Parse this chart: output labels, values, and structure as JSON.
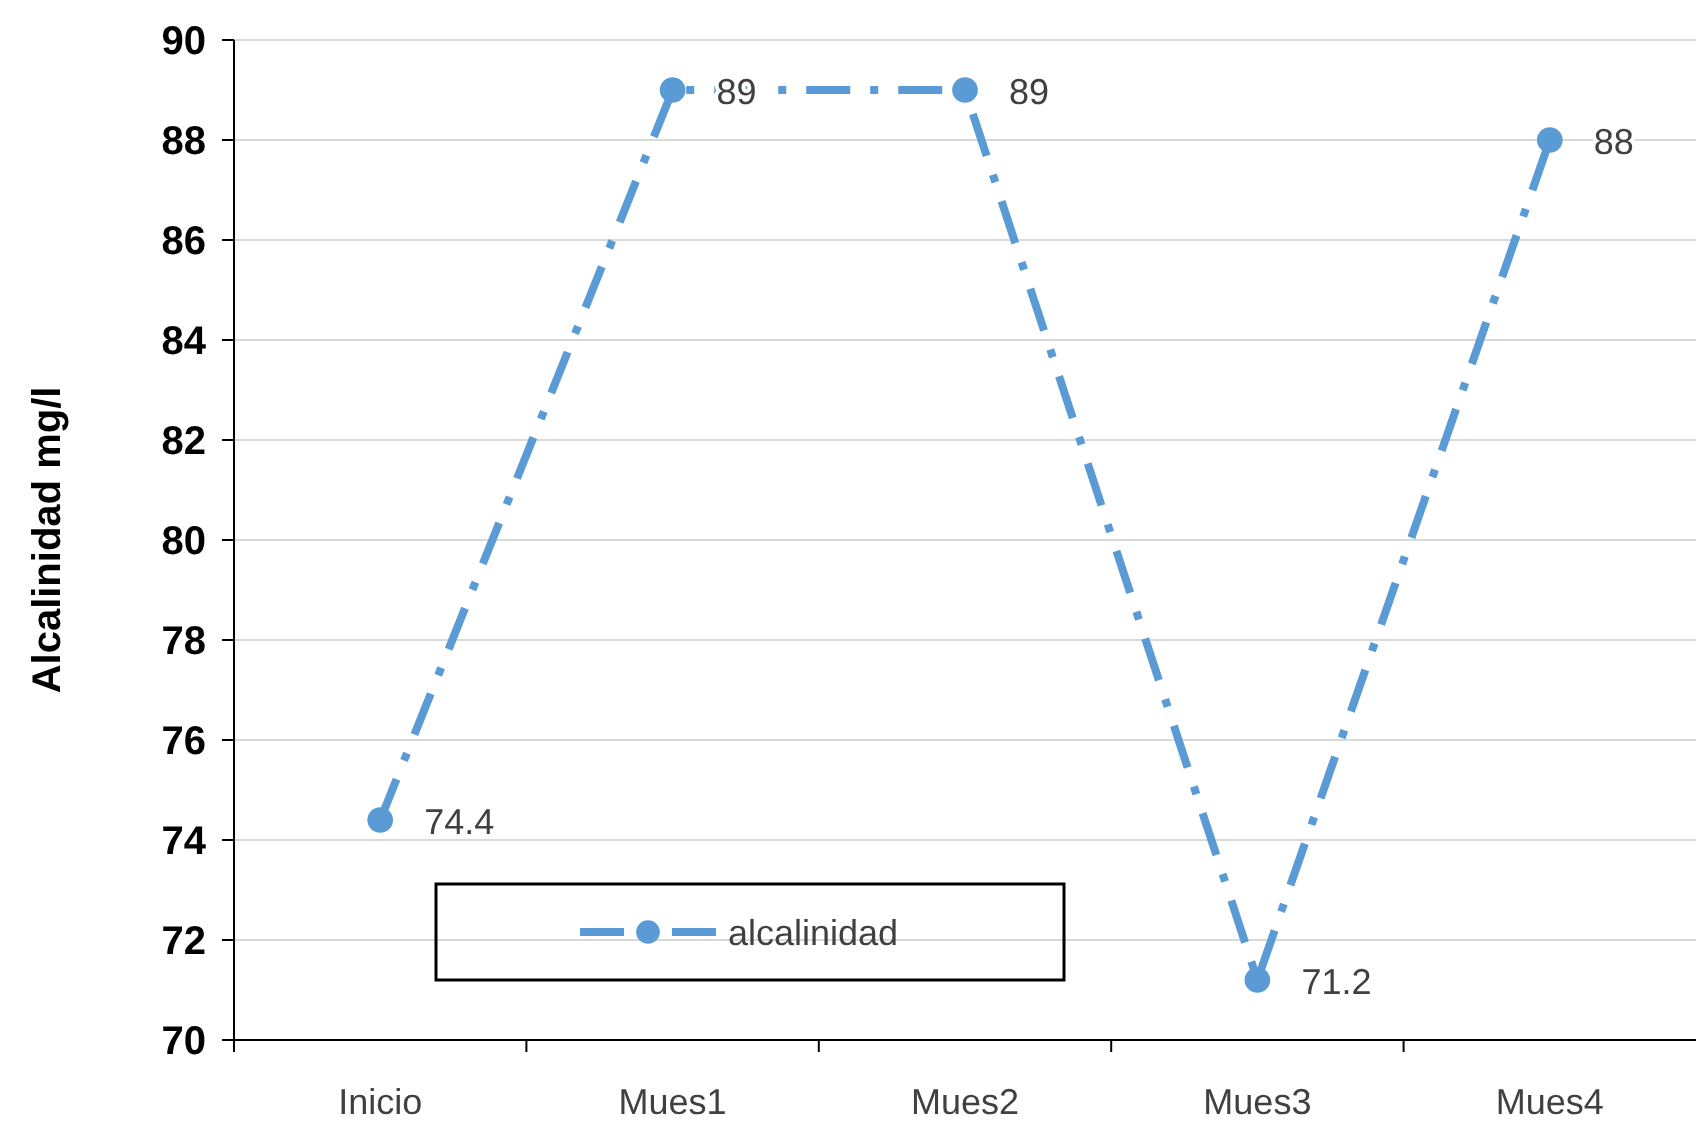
{
  "chart_data": {
    "type": "line",
    "ylabel": "Alcalinidad mg/l",
    "categories": [
      "Inicio",
      "Mues1",
      "Mues2",
      "Mues3",
      "Mues4"
    ],
    "series": [
      {
        "name": "alcalinidad",
        "color": "#5b9bd5",
        "values": [
          74.4,
          89,
          89,
          71.2,
          88
        ]
      }
    ],
    "ylim": [
      70,
      90
    ],
    "yticks": [
      70,
      72,
      74,
      76,
      78,
      80,
      82,
      84,
      86,
      88,
      90
    ],
    "grid": "y",
    "legend": "bottom",
    "marker": "circle",
    "line_style": "dashed",
    "data_labels": true
  }
}
